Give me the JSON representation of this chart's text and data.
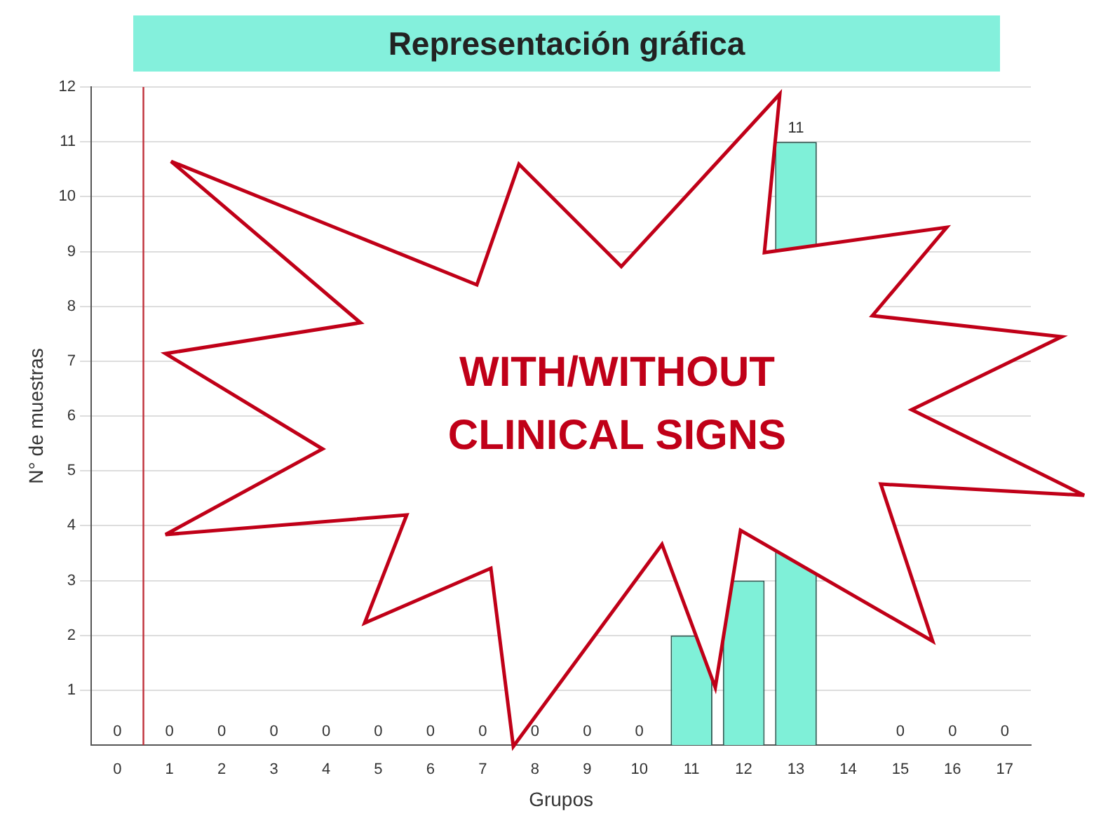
{
  "chart_data": {
    "type": "bar",
    "title": "Representación gráfica",
    "xlabel": "Grupos",
    "ylabel": "N° de muestras",
    "x": [
      0,
      1,
      2,
      3,
      4,
      5,
      6,
      7,
      8,
      9,
      10,
      11,
      12,
      13,
      14,
      15,
      16,
      17
    ],
    "values": [
      0,
      0,
      0,
      0,
      0,
      0,
      0,
      0,
      0,
      0,
      0,
      2,
      3,
      11,
      null,
      0,
      0,
      0
    ],
    "value_labels": [
      "0",
      "0",
      "0",
      "0",
      "0",
      "0",
      "0",
      "0",
      "0",
      "0",
      "0",
      null,
      null,
      "11",
      null,
      "0",
      "0",
      "0"
    ],
    "color": "#7ff0d8",
    "xlim": [
      -0.5,
      17.5
    ],
    "xticks": [
      0,
      1,
      2,
      3,
      4,
      5,
      6,
      7,
      8,
      9,
      10,
      11,
      12,
      13,
      14,
      15,
      16,
      17
    ],
    "ylim": [
      0,
      12
    ],
    "yticks": [
      1,
      2,
      3,
      4,
      5,
      6,
      7,
      8,
      9,
      10,
      11,
      12
    ],
    "grid": "y",
    "legend": false,
    "ref_lines": [
      {
        "axis": "x",
        "value": 0.5,
        "color": "#c0303a"
      }
    ],
    "annotations": [
      "WITH/WITHOUT CLINICAL SIGNS"
    ]
  }
}
